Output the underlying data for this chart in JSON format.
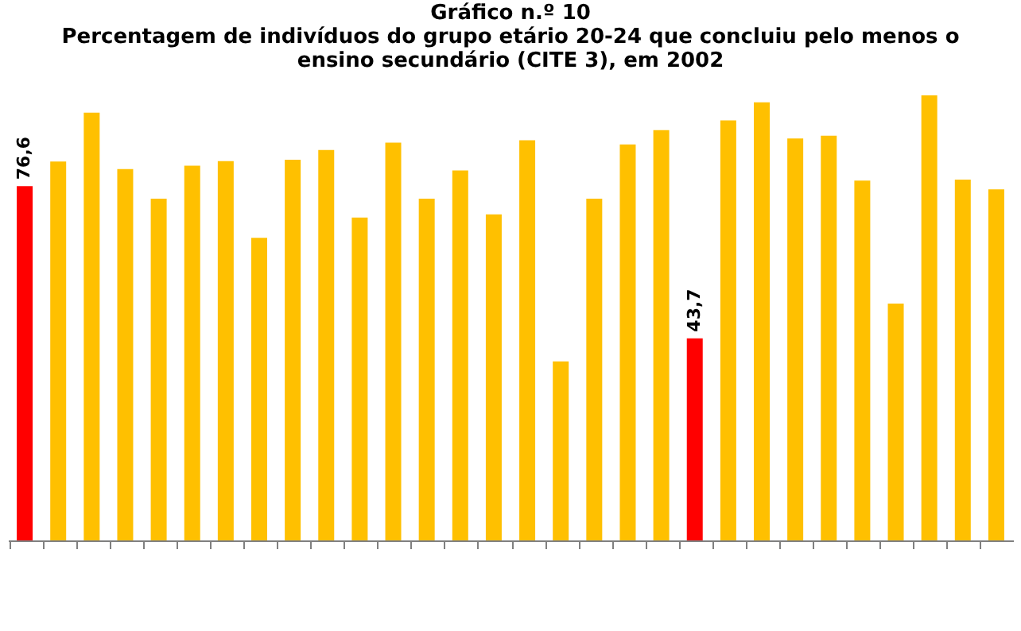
{
  "chart_data": {
    "type": "bar",
    "title": [
      "Gráfico n.º 10",
      "Percentagem de indivíduos do grupo etário 20-24 que concluiu pelo menos o",
      "ensino secundário (CITE 3), em 2002"
    ],
    "categories": [
      null,
      null,
      null,
      null,
      null,
      null,
      null,
      null,
      null,
      null,
      null,
      null,
      null,
      null,
      null,
      null,
      null,
      null,
      null,
      null,
      null,
      null,
      null,
      null,
      null,
      null,
      null,
      null,
      null,
      null
    ],
    "values": [
      76.6,
      81.9,
      92.5,
      80.3,
      73.9,
      81.0,
      82.0,
      65.4,
      82.3,
      84.4,
      69.8,
      86.0,
      73.9,
      80.0,
      70.5,
      86.5,
      38.7,
      73.9,
      85.6,
      88.7,
      43.7,
      90.8,
      94.7,
      86.9,
      87.5,
      77.8,
      51.2,
      96.2,
      78.0,
      75.9
    ],
    "colors": [
      "#ff0000",
      "#ffc000",
      "#ffc000",
      "#ffc000",
      "#ffc000",
      "#ffc000",
      "#ffc000",
      "#ffc000",
      "#ffc000",
      "#ffc000",
      "#ffc000",
      "#ffc000",
      "#ffc000",
      "#ffc000",
      "#ffc000",
      "#ffc000",
      "#ffc000",
      "#ffc000",
      "#ffc000",
      "#ffc000",
      "#ff0000",
      "#ffc000",
      "#ffc000",
      "#ffc000",
      "#ffc000",
      "#ffc000",
      "#ffc000",
      "#ffc000",
      "#ffc000",
      "#ffc000"
    ],
    "value_labels": [
      "76,6",
      null,
      null,
      null,
      null,
      null,
      null,
      null,
      null,
      null,
      null,
      null,
      null,
      null,
      null,
      null,
      null,
      null,
      null,
      null,
      "43,7",
      null,
      null,
      null,
      null,
      null,
      null,
      null,
      null,
      null
    ],
    "grid": false
  }
}
